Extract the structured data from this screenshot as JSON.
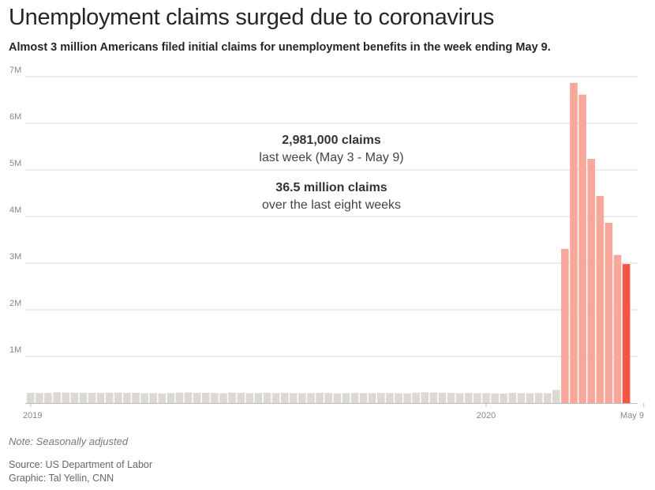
{
  "header": {
    "title": "Unemployment claims surged due to coronavirus",
    "subtitle": "Almost 3 million Americans filed initial claims for unemployment benefits in the week ending May 9."
  },
  "footer": {
    "note": "Note: Seasonally adjusted",
    "source": "Source: US Department of Labor",
    "credit": "Graphic: Tal Yellin, CNN"
  },
  "colors": {
    "baseline_bar": "#dcd9d3",
    "surge_bar": "#f7a89a",
    "latest_bar": "#f25540",
    "grid": "#d9d9d9"
  },
  "chart_data": {
    "type": "bar",
    "title": "Unemployment claims surged due to coronavirus",
    "ylim": [
      0,
      7000000
    ],
    "y_ticks": [
      {
        "value": 1000000,
        "label": "1M"
      },
      {
        "value": 2000000,
        "label": "2M"
      },
      {
        "value": 3000000,
        "label": "3M"
      },
      {
        "value": 4000000,
        "label": "4M"
      },
      {
        "value": 5000000,
        "label": "5M"
      },
      {
        "value": 6000000,
        "label": "6M"
      },
      {
        "value": 7000000,
        "label": "7M"
      }
    ],
    "x_ticks": [
      {
        "index": 0,
        "label": "2019"
      },
      {
        "index": 52,
        "label": "2020"
      },
      {
        "index": 70,
        "label": "May 9"
      }
    ],
    "grid": true,
    "annotations": [
      {
        "strong": "2,981,000 claims",
        "normal": "last week (May 3 - May 9)"
      },
      {
        "strong": "36.5 million claims",
        "normal": "over the last eight weeks"
      }
    ],
    "series": [
      {
        "values": [
          220000,
          215000,
          216000,
          230000,
          225000,
          223000,
          218000,
          220000,
          216000,
          222000,
          225000,
          218000,
          221000,
          210000,
          212000,
          208000,
          215000,
          225000,
          228000,
          218000,
          222000,
          216000,
          212000,
          224000,
          219000,
          213000,
          215000,
          220000,
          214000,
          217000,
          212000,
          210000,
          213000,
          218000,
          216000,
          208000,
          212000,
          216000,
          214000,
          211000,
          218000,
          216000,
          210000,
          206000,
          224000,
          230000,
          226000,
          222000,
          218000,
          210000,
          216000,
          212000,
          214000,
          207000,
          204000,
          217000,
          212000,
          209000,
          214000,
          211000,
          282000,
          3307000,
          6867000,
          6615000,
          5237000,
          4442000,
          3867000,
          3176000,
          2981000
        ]
      }
    ],
    "highlight": {
      "surge_start_index": 61,
      "latest_index": 68
    }
  }
}
